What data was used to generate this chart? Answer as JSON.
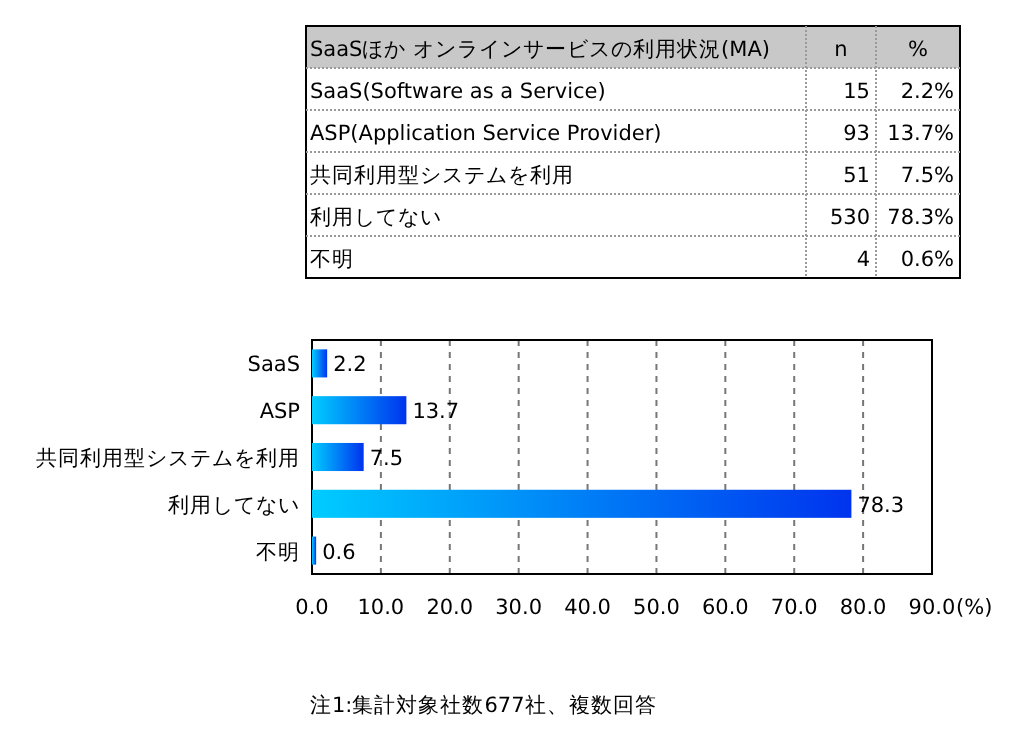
{
  "chart_data": [
    {
      "type": "other",
      "title": "SaaSほか オンラインサービスの利用状況(MA)",
      "categories": [
        "SaaS(Software as a Service)",
        "ASP(Application Service Provider)",
        "共同利用型システムを利用",
        "利用してない",
        "不明"
      ],
      "data_labels": true,
      "series": [
        {
          "name": "n",
          "values": [
            15,
            93,
            51,
            530,
            4
          ]
        },
        {
          "name": "%",
          "values": [
            2.2,
            13.7,
            7.5,
            78.3,
            0.6
          ],
          "value_labels": [
            "2.2%",
            "13.7%",
            "7.5%",
            "78.3%",
            "0.6%"
          ]
        }
      ]
    },
    {
      "type": "bar",
      "orientation": "horizontal",
      "categories": [
        "SaaS",
        "ASP",
        "共同利用型システムを利用",
        "利用してない",
        "不明"
      ],
      "values": [
        2.2,
        13.7,
        7.5,
        78.3,
        0.6
      ],
      "color": "#0033ee",
      "data_labels": true,
      "xlim": [
        0,
        90
      ],
      "xticks": [
        {
          "value": 0,
          "label": "0.0"
        },
        {
          "value": 10,
          "label": "10.0"
        },
        {
          "value": 20,
          "label": "20.0"
        },
        {
          "value": 30,
          "label": "30.0"
        },
        {
          "value": 40,
          "label": "40.0"
        },
        {
          "value": 50,
          "label": "50.0"
        },
        {
          "value": 60,
          "label": "60.0"
        },
        {
          "value": 70,
          "label": "70.0"
        },
        {
          "value": 80,
          "label": "80.0"
        },
        {
          "value": 90,
          "label": "90.0"
        }
      ],
      "xlabel": "(%)",
      "grid": "x",
      "annotations": [
        "注1:集計対象社数677社、複数回答"
      ]
    }
  ]
}
